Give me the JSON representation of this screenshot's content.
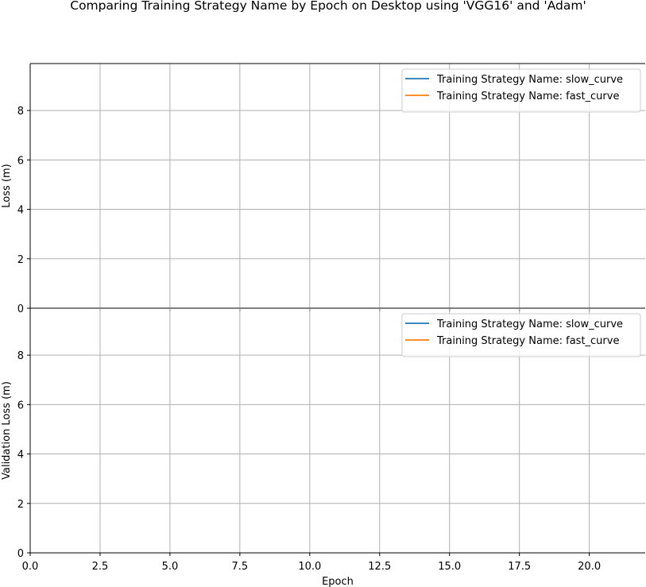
{
  "chart_data": [
    {
      "type": "line",
      "title": "Comparing Training Strategy Name by Epoch on Desktop using 'VGG16' and 'Adam'",
      "xlabel": "",
      "ylabel": "Loss (m)",
      "xlim": [
        0,
        22
      ],
      "ylim": [
        0,
        9.9
      ],
      "x_ticks": [
        "0.0",
        "2.5",
        "5.0",
        "7.5",
        "10.0",
        "12.5",
        "15.0",
        "17.5",
        "20.0"
      ],
      "y_ticks": [
        "0",
        "2",
        "4",
        "6",
        "8"
      ],
      "grid": true,
      "legend_position": "upper right",
      "series": [
        {
          "name": "Training Strategy Name: slow_curve",
          "color": "#1f77b4",
          "x": [],
          "y": []
        },
        {
          "name": "Training Strategy Name: fast_curve",
          "color": "#ff7f0e",
          "x": [],
          "y": []
        }
      ]
    },
    {
      "type": "line",
      "xlabel": "Epoch",
      "ylabel": "Validation Loss (m)",
      "xlim": [
        0,
        22
      ],
      "ylim": [
        0,
        9.9
      ],
      "x_ticks": [
        "0.0",
        "2.5",
        "5.0",
        "7.5",
        "10.0",
        "12.5",
        "15.0",
        "17.5",
        "20.0"
      ],
      "y_ticks": [
        "0",
        "2",
        "4",
        "6",
        "8"
      ],
      "grid": true,
      "legend_position": "upper right",
      "series": [
        {
          "name": "Training Strategy Name: slow_curve",
          "color": "#1f77b4",
          "x": [],
          "y": []
        },
        {
          "name": "Training Strategy Name: fast_curve",
          "color": "#ff7f0e",
          "x": [],
          "y": []
        }
      ]
    }
  ]
}
